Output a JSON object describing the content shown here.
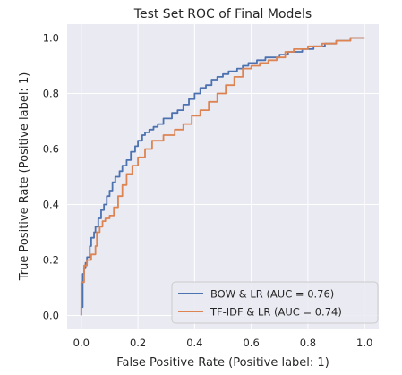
{
  "chart_data": {
    "type": "line",
    "title": "Test Set ROC of Final Models",
    "xlabel": "False Positive Rate (Positive label: 1)",
    "ylabel": "True Positive Rate (Positive label: 1)",
    "xlim": [
      -0.05,
      1.05
    ],
    "ylim": [
      -0.05,
      1.05
    ],
    "xticks": [
      "0.0",
      "0.2",
      "0.4",
      "0.6",
      "0.8",
      "1.0"
    ],
    "yticks": [
      "0.0",
      "0.2",
      "0.4",
      "0.6",
      "0.8",
      "1.0"
    ],
    "grid": true,
    "legend_position": "lower-right",
    "background_color": "#eaeaf2",
    "series": [
      {
        "name": "BOW & LR (AUC = 0.76)",
        "color": "#4c72b0",
        "x": [
          0.0,
          0.0,
          0.005,
          0.005,
          0.01,
          0.01,
          0.015,
          0.015,
          0.02,
          0.02,
          0.03,
          0.03,
          0.035,
          0.035,
          0.045,
          0.045,
          0.05,
          0.05,
          0.06,
          0.06,
          0.07,
          0.07,
          0.08,
          0.08,
          0.09,
          0.09,
          0.1,
          0.1,
          0.11,
          0.11,
          0.12,
          0.12,
          0.135,
          0.135,
          0.145,
          0.145,
          0.16,
          0.16,
          0.175,
          0.175,
          0.19,
          0.19,
          0.2,
          0.2,
          0.215,
          0.215,
          0.225,
          0.225,
          0.24,
          0.24,
          0.255,
          0.255,
          0.27,
          0.27,
          0.29,
          0.29,
          0.32,
          0.32,
          0.34,
          0.34,
          0.36,
          0.36,
          0.38,
          0.38,
          0.4,
          0.4,
          0.42,
          0.42,
          0.44,
          0.44,
          0.46,
          0.46,
          0.48,
          0.48,
          0.5,
          0.5,
          0.52,
          0.52,
          0.55,
          0.55,
          0.57,
          0.57,
          0.59,
          0.59,
          0.62,
          0.62,
          0.65,
          0.65,
          0.7,
          0.7,
          0.73,
          0.73,
          0.78,
          0.78,
          0.82,
          0.82,
          0.86,
          0.86,
          0.9,
          0.9,
          0.95,
          0.95,
          1.0
        ],
        "y": [
          0.0,
          0.03,
          0.03,
          0.15,
          0.15,
          0.17,
          0.17,
          0.19,
          0.19,
          0.21,
          0.21,
          0.25,
          0.25,
          0.28,
          0.28,
          0.3,
          0.3,
          0.32,
          0.32,
          0.35,
          0.35,
          0.38,
          0.38,
          0.4,
          0.4,
          0.43,
          0.43,
          0.45,
          0.45,
          0.48,
          0.48,
          0.5,
          0.5,
          0.52,
          0.52,
          0.54,
          0.54,
          0.56,
          0.56,
          0.59,
          0.59,
          0.61,
          0.61,
          0.63,
          0.63,
          0.65,
          0.65,
          0.66,
          0.66,
          0.67,
          0.67,
          0.68,
          0.68,
          0.69,
          0.69,
          0.71,
          0.71,
          0.73,
          0.73,
          0.74,
          0.74,
          0.76,
          0.76,
          0.78,
          0.78,
          0.8,
          0.8,
          0.82,
          0.82,
          0.83,
          0.83,
          0.85,
          0.85,
          0.86,
          0.86,
          0.87,
          0.87,
          0.88,
          0.88,
          0.89,
          0.89,
          0.9,
          0.9,
          0.91,
          0.91,
          0.92,
          0.92,
          0.93,
          0.93,
          0.94,
          0.94,
          0.95,
          0.95,
          0.96,
          0.96,
          0.97,
          0.97,
          0.98,
          0.98,
          0.99,
          0.99,
          1.0,
          1.0
        ]
      },
      {
        "name": "TF-IDF & LR (AUC = 0.74)",
        "color": "#dd8452",
        "x": [
          0.0,
          0.0,
          0.01,
          0.01,
          0.02,
          0.02,
          0.035,
          0.035,
          0.05,
          0.05,
          0.055,
          0.055,
          0.065,
          0.065,
          0.075,
          0.075,
          0.085,
          0.085,
          0.1,
          0.1,
          0.115,
          0.115,
          0.13,
          0.13,
          0.145,
          0.145,
          0.16,
          0.16,
          0.18,
          0.18,
          0.2,
          0.2,
          0.225,
          0.225,
          0.25,
          0.25,
          0.29,
          0.29,
          0.33,
          0.33,
          0.36,
          0.36,
          0.39,
          0.39,
          0.42,
          0.42,
          0.45,
          0.45,
          0.48,
          0.48,
          0.51,
          0.51,
          0.54,
          0.54,
          0.57,
          0.57,
          0.6,
          0.6,
          0.63,
          0.63,
          0.66,
          0.66,
          0.69,
          0.69,
          0.72,
          0.72,
          0.75,
          0.75,
          0.8,
          0.8,
          0.85,
          0.85,
          0.9,
          0.9,
          0.95,
          0.95,
          0.98,
          0.98,
          1.0
        ],
        "y": [
          0.0,
          0.12,
          0.12,
          0.18,
          0.18,
          0.2,
          0.2,
          0.22,
          0.22,
          0.25,
          0.25,
          0.3,
          0.3,
          0.32,
          0.32,
          0.34,
          0.34,
          0.35,
          0.35,
          0.36,
          0.36,
          0.39,
          0.39,
          0.43,
          0.43,
          0.47,
          0.47,
          0.51,
          0.51,
          0.54,
          0.54,
          0.57,
          0.57,
          0.6,
          0.6,
          0.63,
          0.63,
          0.65,
          0.65,
          0.67,
          0.67,
          0.69,
          0.69,
          0.72,
          0.72,
          0.74,
          0.74,
          0.77,
          0.77,
          0.8,
          0.8,
          0.83,
          0.83,
          0.86,
          0.86,
          0.89,
          0.89,
          0.9,
          0.9,
          0.91,
          0.91,
          0.92,
          0.92,
          0.93,
          0.93,
          0.95,
          0.95,
          0.96,
          0.96,
          0.97,
          0.97,
          0.98,
          0.98,
          0.99,
          0.99,
          1.0,
          1.0,
          1.0,
          1.0
        ]
      }
    ]
  }
}
